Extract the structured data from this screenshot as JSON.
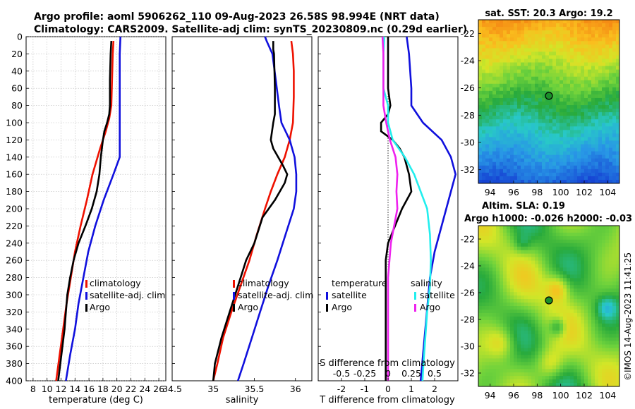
{
  "header": {
    "line1": "Argo profile: aoml 5906262_110 09-Aug-2023 26.58S 98.994E (NRT data)",
    "line2": "Climatology: CARS2009. Satellite-adj clim: synTS_20230809.nc (0.29d earlier)"
  },
  "timestamp": "©IMOS 14-Aug-2023 11:41:25",
  "colors": {
    "clim": "#ee1100",
    "sat": "#1010dd",
    "argo": "#000000",
    "cyan": "#22eeee",
    "magenta": "#ee22ee"
  },
  "chart_data": [
    {
      "type": "line",
      "title": "",
      "xlabel": "temperature (deg C)",
      "xticks": [
        "8",
        "10",
        "12",
        "14",
        "16",
        "18",
        "20",
        "22",
        "24",
        "26"
      ],
      "xlim": [
        7,
        27
      ],
      "ylim": [
        0,
        400
      ],
      "yticks": [
        "0",
        "20",
        "40",
        "60",
        "80",
        "100",
        "120",
        "140",
        "160",
        "180",
        "200",
        "220",
        "240",
        "260",
        "280",
        "300",
        "320",
        "340",
        "360",
        "380",
        "400"
      ],
      "legend": [
        "climatology",
        "satellite-adj. clim",
        "Argo"
      ],
      "series": [
        {
          "name": "climatology",
          "color": "clim",
          "depth": [
            5,
            20,
            50,
            80,
            95,
            110,
            130,
            160,
            190,
            220,
            250,
            280,
            310,
            340,
            370,
            400
          ],
          "values": [
            19.5,
            19.4,
            19.3,
            19.2,
            18.9,
            18.4,
            17.6,
            16.5,
            15.7,
            14.8,
            14.0,
            13.4,
            12.8,
            12.3,
            11.8,
            11.3
          ]
        },
        {
          "name": "satellite-adj. clim",
          "color": "sat",
          "depth": [
            0,
            20,
            50,
            80,
            100,
            120,
            140,
            160,
            190,
            220,
            250,
            280,
            310,
            340,
            370,
            400
          ],
          "values": [
            20.5,
            20.4,
            20.4,
            20.4,
            20.4,
            20.4,
            20.4,
            19.5,
            18.1,
            16.9,
            15.9,
            15.2,
            14.5,
            14.0,
            13.3,
            12.7
          ]
        },
        {
          "name": "Argo",
          "color": "argo",
          "depth": [
            5,
            20,
            50,
            80,
            90,
            100,
            110,
            120,
            140,
            160,
            180,
            200,
            220,
            240,
            260,
            280,
            300,
            320,
            340,
            360,
            380,
            400
          ],
          "values": [
            19.2,
            19.1,
            19.0,
            19.0,
            18.9,
            18.6,
            18.2,
            18.0,
            17.7,
            17.5,
            17.1,
            16.4,
            15.5,
            14.5,
            13.8,
            13.3,
            12.9,
            12.7,
            12.5,
            12.2,
            11.9,
            11.6
          ]
        }
      ]
    },
    {
      "type": "line",
      "xlabel": "salinity",
      "xticks": [
        "34.5",
        "35",
        "35.5",
        "36"
      ],
      "xlim": [
        34.5,
        36.2
      ],
      "ylim": [
        0,
        400
      ],
      "legend": [
        "climatology",
        "satellite-adj. clim",
        "Argo"
      ],
      "series": [
        {
          "name": "climatology",
          "color": "clim",
          "depth": [
            5,
            20,
            40,
            70,
            100,
            120,
            140,
            160,
            180,
            200,
            230,
            260,
            290,
            320,
            350,
            380,
            400
          ],
          "values": [
            35.95,
            35.97,
            35.98,
            35.98,
            35.97,
            35.93,
            35.87,
            35.78,
            35.7,
            35.63,
            35.53,
            35.44,
            35.33,
            35.22,
            35.12,
            35.05,
            35.0
          ]
        },
        {
          "name": "satellite-adj. clim",
          "color": "sat",
          "depth": [
            0,
            5,
            20,
            50,
            80,
            100,
            120,
            140,
            160,
            180,
            200,
            230,
            260,
            290,
            320,
            350,
            380,
            400
          ],
          "values": [
            35.63,
            35.65,
            35.72,
            35.76,
            35.8,
            35.83,
            35.93,
            35.99,
            36.01,
            36.01,
            35.98,
            35.88,
            35.78,
            35.67,
            35.57,
            35.47,
            35.37,
            35.3
          ]
        },
        {
          "name": "Argo",
          "color": "argo",
          "depth": [
            5,
            15,
            20,
            60,
            90,
            100,
            120,
            130,
            150,
            160,
            170,
            190,
            210,
            240,
            260,
            290,
            320,
            350,
            380,
            400
          ],
          "values": [
            35.73,
            35.73,
            35.74,
            35.75,
            35.75,
            35.73,
            35.7,
            35.73,
            35.85,
            35.9,
            35.87,
            35.75,
            35.6,
            35.5,
            35.4,
            35.3,
            35.2,
            35.1,
            35.02,
            35.0
          ]
        }
      ]
    },
    {
      "type": "line",
      "xlabel": "T difference from climatology",
      "xticks": [
        "-2",
        "-1",
        "0",
        "1",
        "2"
      ],
      "xlim": [
        -3,
        3
      ],
      "top_xlabel": "S difference from climatology",
      "top_xticks": [
        "-0.5",
        "-0.25",
        "0",
        "0.25",
        "0.5"
      ],
      "ylim": [
        0,
        400
      ],
      "legend_left": {
        "title": "temperature",
        "items": [
          "satellite",
          "Argo"
        ]
      },
      "legend_right": {
        "title": "salinity",
        "items": [
          "satellite",
          "Argo"
        ]
      },
      "series": [
        {
          "name": "temperature satellite",
          "color": "sat",
          "depth": [
            0,
            20,
            60,
            80,
            100,
            120,
            140,
            160,
            180,
            200,
            220,
            250,
            280,
            310,
            340,
            370,
            400
          ],
          "values": [
            0.8,
            0.9,
            1.0,
            1.0,
            1.5,
            2.3,
            2.7,
            2.9,
            2.7,
            2.5,
            2.3,
            2.0,
            1.8,
            1.7,
            1.6,
            1.5,
            1.4
          ]
        },
        {
          "name": "temperature Argo",
          "color": "argo",
          "depth": [
            0,
            20,
            60,
            80,
            90,
            100,
            110,
            120,
            130,
            140,
            150,
            160,
            180,
            200,
            220,
            240,
            260,
            300,
            340,
            380,
            400
          ],
          "values": [
            0.0,
            0.0,
            0.0,
            0.1,
            0.0,
            -0.3,
            -0.3,
            0.2,
            0.5,
            0.7,
            0.8,
            0.9,
            1.0,
            0.6,
            0.3,
            0.0,
            -0.1,
            -0.1,
            -0.1,
            -0.1,
            -0.1
          ]
        },
        {
          "name": "salinity satellite",
          "color": "cyan",
          "depth": [
            0,
            20,
            60,
            80,
            100,
            120,
            140,
            160,
            180,
            200,
            230,
            260,
            290,
            320,
            350,
            380,
            400
          ],
          "values": [
            -0.04,
            -0.05,
            -0.05,
            0.0,
            0.0,
            0.05,
            0.18,
            0.28,
            0.35,
            0.42,
            0.45,
            0.46,
            0.45,
            0.42,
            0.4,
            0.38,
            0.37
          ]
        },
        {
          "name": "salinity Argo",
          "color": "magenta",
          "depth": [
            0,
            20,
            60,
            80,
            100,
            120,
            140,
            160,
            180,
            200,
            240,
            280,
            320,
            360,
            400
          ],
          "values": [
            -0.06,
            -0.05,
            -0.05,
            -0.05,
            -0.02,
            0.02,
            0.08,
            0.1,
            0.09,
            0.1,
            0.03,
            0.0,
            0.0,
            0.0,
            0.0
          ]
        }
      ]
    },
    {
      "type": "heatmap",
      "title": "sat. SST: 20.3 Argo: 19.2",
      "xticks": [
        "94",
        "96",
        "98",
        "100",
        "102",
        "104"
      ],
      "yticks": [
        "-22",
        "-24",
        "-26",
        "-28",
        "-30",
        "-32"
      ],
      "xlim": [
        93,
        105
      ],
      "ylim": [
        -33,
        -21
      ],
      "marker": {
        "lon": 99.0,
        "lat": -26.58
      }
    },
    {
      "type": "heatmap",
      "title": "Altim. SLA: 0.19",
      "subtitle": "Argo h1000: -0.026 h2000: -0.03",
      "xticks": [
        "94",
        "96",
        "98",
        "100",
        "102",
        "104"
      ],
      "yticks": [
        "-22",
        "-24",
        "-26",
        "-28",
        "-30",
        "-32"
      ],
      "xlim": [
        93,
        105
      ],
      "ylim": [
        -33,
        -21
      ],
      "marker": {
        "lon": 99.0,
        "lat": -26.58
      }
    }
  ]
}
